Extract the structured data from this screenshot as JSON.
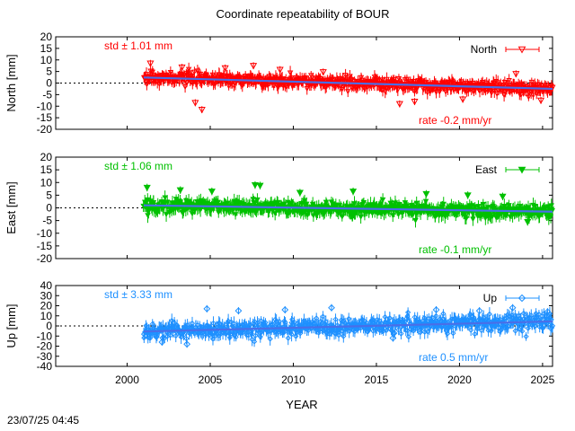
{
  "title": "Coordinate repeatability of BOUR",
  "timestamp": "23/07/25 04:45",
  "x_axis": {
    "label": "YEAR",
    "ticks": [
      2000,
      2005,
      2010,
      2015,
      2020,
      2025
    ],
    "range": [
      1995.7,
      2025.6
    ]
  },
  "colors": {
    "north": "#ff0000",
    "east": "#00c000",
    "up": "#1e90ff",
    "trend": "#4a6ee8",
    "axis": "#000000"
  },
  "chart_data": [
    {
      "type": "scatter",
      "panel": "north",
      "ylabel": "North [mm]",
      "legend": "North",
      "legend_position": "top-right",
      "marker": "triangle-down-open",
      "color": "#ff0000",
      "std_label": "std ± 1.01 mm",
      "rate_label": "rate -0.2 mm/yr",
      "ylim": [
        -20,
        20
      ],
      "yticks": [
        -20,
        -15,
        -10,
        -5,
        0,
        5,
        10,
        15,
        20
      ],
      "x_range": [
        2001.0,
        2025.6
      ],
      "std": 1.01,
      "rate": -0.2,
      "trend": [
        [
          2001.0,
          2.4
        ],
        [
          2025.6,
          -2.5
        ]
      ],
      "error_bar_half_height": 2.5,
      "outliers": [
        [
          2001.4,
          8.5
        ],
        [
          2003.3,
          6.8
        ],
        [
          2004.1,
          -8.5
        ],
        [
          2004.5,
          -11.5
        ],
        [
          2005.9,
          6.5
        ],
        [
          2007.6,
          7.5
        ],
        [
          2009.2,
          5.8
        ],
        [
          2011.8,
          4.8
        ],
        [
          2016.4,
          -9.0
        ],
        [
          2017.3,
          -8.0
        ],
        [
          2020.2,
          -7.0
        ],
        [
          2023.4,
          4.0
        ],
        [
          2024.9,
          -7.5
        ]
      ],
      "zero_line": "dotted",
      "grid": false
    },
    {
      "type": "scatter",
      "panel": "east",
      "ylabel": "East [mm]",
      "legend": "East",
      "legend_position": "top-right",
      "marker": "triangle-down-filled",
      "color": "#00c000",
      "std_label": "std ± 1.06 mm",
      "rate_label": "rate -0.1 mm/yr",
      "ylim": [
        -20,
        20
      ],
      "yticks": [
        -20,
        -15,
        -10,
        -5,
        0,
        5,
        10,
        15,
        20
      ],
      "x_range": [
        2001.0,
        2025.6
      ],
      "std": 1.06,
      "rate": -0.1,
      "trend": [
        [
          2001.0,
          1.0
        ],
        [
          2025.6,
          -1.5
        ]
      ],
      "error_bar_half_height": 2.5,
      "outliers": [
        [
          2001.2,
          8.0
        ],
        [
          2003.2,
          7.0
        ],
        [
          2005.1,
          6.5
        ],
        [
          2007.7,
          9.0
        ],
        [
          2008.0,
          8.8
        ],
        [
          2010.4,
          6.0
        ],
        [
          2013.6,
          6.5
        ],
        [
          2018.0,
          5.5
        ],
        [
          2020.5,
          5.0
        ],
        [
          2022.6,
          4.5
        ],
        [
          2024.1,
          -5.5
        ]
      ],
      "zero_line": "dotted",
      "grid": false
    },
    {
      "type": "scatter",
      "panel": "up",
      "ylabel": "Up [mm]",
      "legend": "Up",
      "legend_position": "top-right",
      "marker": "diamond-open",
      "color": "#1e90ff",
      "std_label": "std ± 3.33 mm",
      "rate_label": "rate  0.5 mm/yr",
      "ylim": [
        -40,
        40
      ],
      "yticks": [
        -40,
        -30,
        -20,
        -10,
        0,
        10,
        20,
        30,
        40
      ],
      "x_range": [
        2001.0,
        2025.6
      ],
      "std": 3.33,
      "rate": 0.5,
      "trend": [
        [
          2001.0,
          -5.5
        ],
        [
          2025.6,
          4.5
        ]
      ],
      "error_bar_half_height": 6.0,
      "outliers": [
        [
          2002.1,
          -16.0
        ],
        [
          2003.6,
          -18.0
        ],
        [
          2004.8,
          17.0
        ],
        [
          2006.7,
          15.0
        ],
        [
          2009.5,
          16.0
        ],
        [
          2012.3,
          18.0
        ],
        [
          2016.0,
          -12.0
        ],
        [
          2018.6,
          16.0
        ],
        [
          2021.2,
          15.0
        ],
        [
          2023.2,
          18.0
        ],
        [
          2025.3,
          14.0
        ]
      ],
      "zero_line": "dotted",
      "grid": false
    }
  ]
}
